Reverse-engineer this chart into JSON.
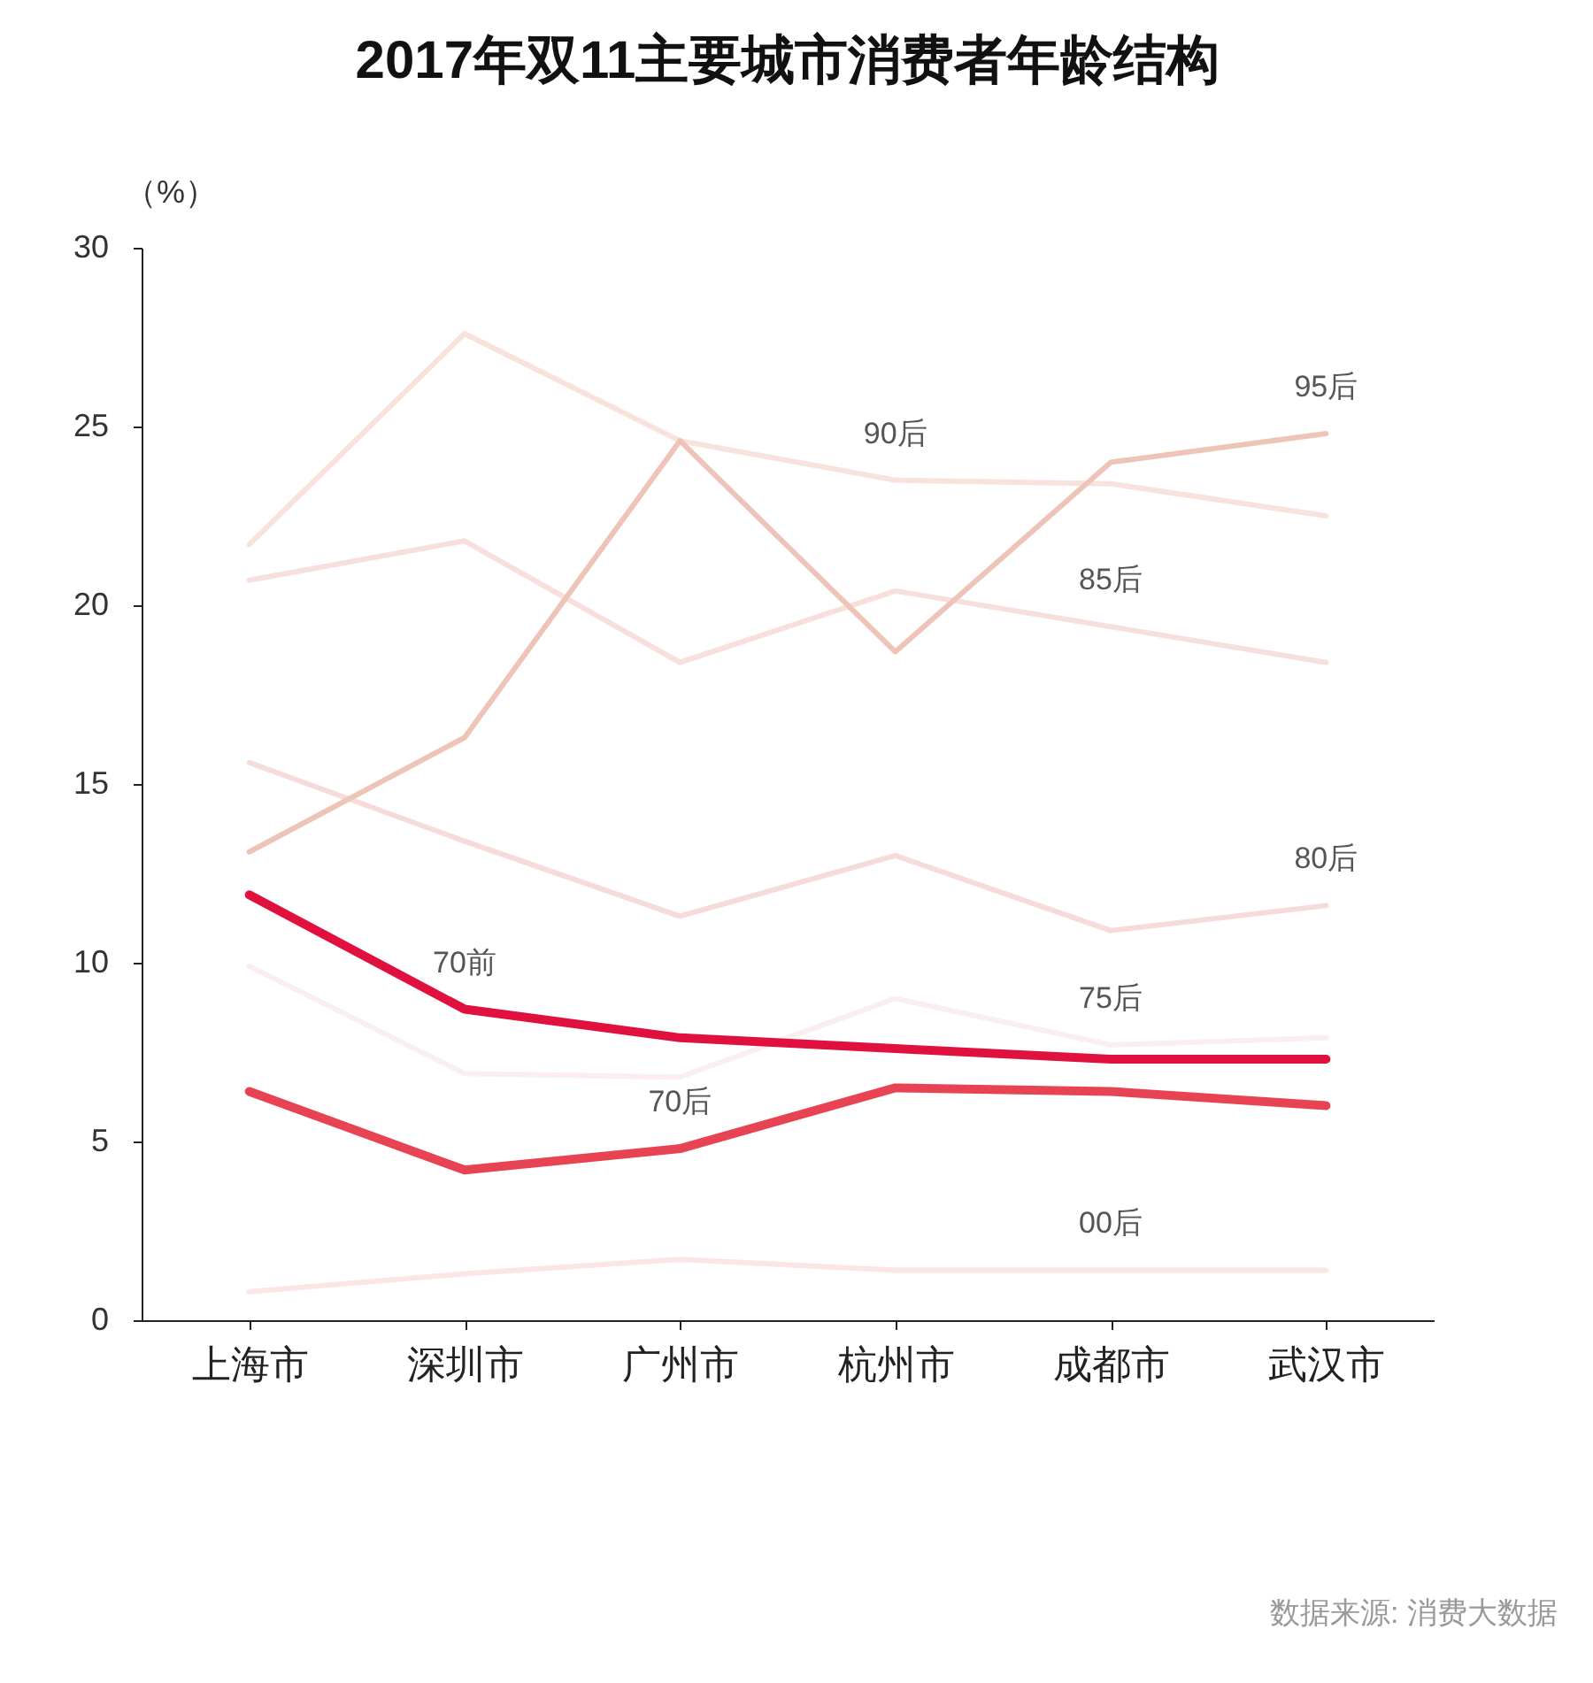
{
  "chart_data": {
    "type": "line",
    "title": "2017年双11主要城市消费者年龄结构",
    "ylabel": "（%）",
    "categories": [
      "上海市",
      "深圳市",
      "广州市",
      "杭州市",
      "成都市",
      "武汉市"
    ],
    "series": [
      {
        "color": "#f8e2dc",
        "values": [
          21.7,
          27.6,
          24.6,
          23.5,
          23.4,
          22.5
        ]
      },
      {
        "color": "#f7e0dc",
        "values": [
          20.7,
          21.8,
          18.4,
          20.4,
          19.4,
          18.4
        ]
      },
      {
        "color": "#f5dcd8",
        "values": [
          15.6,
          13.4,
          11.3,
          13.0,
          10.9,
          11.6
        ]
      },
      {
        "color": "#fbeeee",
        "values": [
          9.9,
          6.9,
          6.8,
          9.0,
          7.7,
          7.9
        ]
      },
      {
        "color": "#fae6e4",
        "values": [
          0.8,
          1.3,
          1.7,
          1.4,
          1.4,
          1.4
        ]
      },
      {
        "color": "#efc4b8",
        "values": [
          13.1,
          16.3,
          24.6,
          18.7,
          24.0,
          24.8
        ]
      },
      {
        "color": "#e84352",
        "values": [
          6.4,
          4.2,
          4.8,
          6.5,
          6.4,
          6.0
        ]
      },
      {
        "color": "#e0103f",
        "values": [
          11.9,
          8.7,
          7.9,
          7.6,
          7.3,
          7.3
        ]
      }
    ],
    "ylim": [
      0,
      30
    ],
    "yticks": [
      0,
      5,
      10,
      15,
      20,
      25,
      30
    ],
    "grid": false,
    "annotations": [
      {
        "text": "70前",
        "x": "深圳市",
        "y": 8.7
      },
      {
        "text": "70后",
        "x": "广州市",
        "y": 4.8
      },
      {
        "text": "75后",
        "x": "成都市",
        "y": 7.7
      },
      {
        "text": "80后",
        "x": "武汉市",
        "y": 11.6
      },
      {
        "text": "85后",
        "x": "成都市",
        "y": 19.4
      },
      {
        "text": "90后",
        "x": "杭州市",
        "y": 23.5
      },
      {
        "text": "95后",
        "x": "武汉市",
        "y": 24.8
      },
      {
        "text": "00后",
        "x": "成都市",
        "y": 1.4
      },
      "数据来源: 消费大数据"
    ]
  }
}
